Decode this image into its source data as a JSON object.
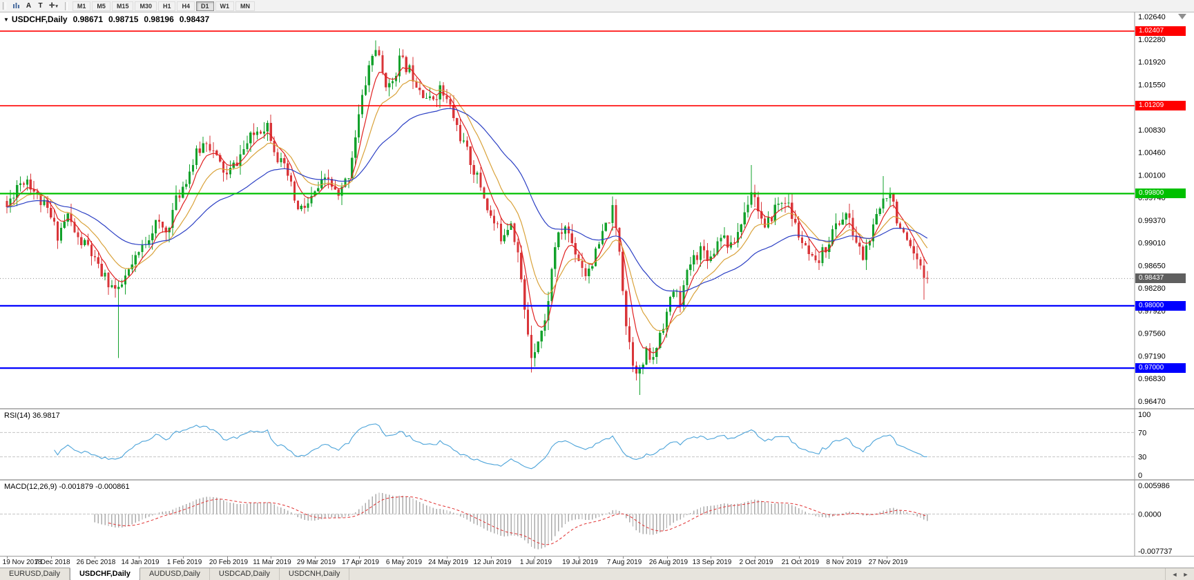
{
  "toolbar": {
    "tool_a": "A",
    "tool_t": "T",
    "crosshair_glyph": "✛",
    "caret_glyph": "▾",
    "timeframes": [
      "M1",
      "M5",
      "M15",
      "M30",
      "H1",
      "H4",
      "D1",
      "W1",
      "MN"
    ],
    "active_timeframe": "D1"
  },
  "chart_header": {
    "collapse_icon": "▼",
    "title": "USDCHF,Daily",
    "open": "0.98671",
    "high": "0.98715",
    "low": "0.98196",
    "close": "0.98437"
  },
  "price_scale": [
    "1.02640",
    "1.02280",
    "1.01920",
    "1.01550",
    "1.01190",
    "1.00830",
    "1.00460",
    "1.00100",
    "0.99740",
    "0.99370",
    "0.99010",
    "0.98650",
    "0.98280",
    "0.97920",
    "0.97560",
    "0.97190",
    "0.96830",
    "0.96470"
  ],
  "hlines": [
    {
      "label": "1.02407",
      "price": 1.02407,
      "color": "#ff0000",
      "width": 1.6
    },
    {
      "label": "1.01209",
      "price": 1.01209,
      "color": "#ff0000",
      "width": 1.6
    },
    {
      "label": "0.99800",
      "price": 0.998,
      "color": "#00c000",
      "width": 2.2
    },
    {
      "label": "0.98000",
      "price": 0.98,
      "color": "#0000ff",
      "width": 2.2
    },
    {
      "label": "0.97000",
      "price": 0.97,
      "color": "#0000ff",
      "width": 2.2
    }
  ],
  "bid": {
    "label": "0.98437",
    "price": 0.98437,
    "badge_color": "#5f5f5f"
  },
  "indicators": {
    "rsi": {
      "label": "RSI(14) 36.9817",
      "scale": [
        "100",
        "70",
        "30",
        "0"
      ],
      "levels": [
        70,
        30
      ],
      "line_color": "#4ba3d9"
    },
    "macd": {
      "label": "MACD(12,26,9) -0.001879 -0.000861",
      "scale": [
        "0.005986",
        "0.0000",
        "-0.007737"
      ],
      "histogram_color": "#ababab",
      "signal_color": "#e03030"
    }
  },
  "date_axis": [
    "19 Nov 2018",
    "7 Dec 2018",
    "26 Dec 2018",
    "14 Jan 2019",
    "1 Feb 2019",
    "20 Feb 2019",
    "11 Mar 2019",
    "29 Mar 2019",
    "17 Apr 2019",
    "6 May 2019",
    "24 May 2019",
    "12 Jun 2019",
    "1 Jul 2019",
    "19 Jul 2019",
    "7 Aug 2019",
    "26 Aug 2019",
    "13 Sep 2019",
    "2 Oct 2019",
    "21 Oct 2019",
    "8 Nov 2019",
    "27 Nov 2019"
  ],
  "tabs": [
    {
      "label": "EURUSD,Daily",
      "active": false
    },
    {
      "label": "USDCHF,Daily",
      "active": true
    },
    {
      "label": "AUDUSD,Daily",
      "active": false
    },
    {
      "label": "USDCAD,Daily",
      "active": false
    },
    {
      "label": "USDCNH,Daily",
      "active": false
    }
  ],
  "tab_scroll": {
    "left": "◄",
    "right": "►"
  },
  "chart_data": {
    "type": "candlestick",
    "symbol": "USDCHF",
    "timeframe": "Daily",
    "current_ohlc": {
      "open": 0.98671,
      "high": 0.98715,
      "low": 0.98196,
      "close": 0.98437
    },
    "y_axis_range": [
      0.9647,
      1.0264
    ],
    "candle_count": 273,
    "last_close": 0.98437,
    "seed": 11,
    "noise": 0.0011,
    "wick_noise": 0.0016,
    "up_color": "#12a12b",
    "down_color": "#d93539",
    "price_anchors": [
      [
        0,
        0.9958
      ],
      [
        3,
        0.9995
      ],
      [
        6,
        1.0005
      ],
      [
        9,
        0.9975
      ],
      [
        12,
        0.9952
      ],
      [
        15,
        0.9915
      ],
      [
        18,
        0.9945
      ],
      [
        21,
        0.9905
      ],
      [
        24,
        0.9895
      ],
      [
        27,
        0.9858
      ],
      [
        30,
        0.9838
      ],
      [
        33,
        0.982
      ],
      [
        35,
        0.9845
      ],
      [
        38,
        0.9872
      ],
      [
        41,
        0.9905
      ],
      [
        44,
        0.9932
      ],
      [
        47,
        0.9918
      ],
      [
        50,
        0.9968
      ],
      [
        53,
        1.0005
      ],
      [
        56,
        1.0042
      ],
      [
        59,
        1.0068
      ],
      [
        62,
        1.0035
      ],
      [
        65,
        1.0008
      ],
      [
        68,
        1.0032
      ],
      [
        71,
        1.006
      ],
      [
        74,
        1.0082
      ],
      [
        77,
        1.0092
      ],
      [
        80,
        1.0038
      ],
      [
        83,
        1.0008
      ],
      [
        86,
        0.9952
      ],
      [
        89,
        0.9962
      ],
      [
        92,
        0.9988
      ],
      [
        95,
        1.0002
      ],
      [
        98,
        0.9972
      ],
      [
        101,
        1.0012
      ],
      [
        104,
        1.0105
      ],
      [
        107,
        1.0185
      ],
      [
        109,
        1.0215
      ],
      [
        111,
        1.0172
      ],
      [
        113,
        1.0148
      ],
      [
        116,
        1.0195
      ],
      [
        119,
        1.0178
      ],
      [
        122,
        1.0152
      ],
      [
        125,
        1.0128
      ],
      [
        128,
        1.0148
      ],
      [
        131,
        1.0118
      ],
      [
        134,
        1.0072
      ],
      [
        137,
        1.0032
      ],
      [
        140,
        0.9992
      ],
      [
        143,
        0.9942
      ],
      [
        146,
        0.9912
      ],
      [
        149,
        0.9938
      ],
      [
        151,
        0.9885
      ],
      [
        153,
        0.979
      ],
      [
        155,
        0.9722
      ],
      [
        157,
        0.9748
      ],
      [
        159,
        0.9772
      ],
      [
        162,
        0.9898
      ],
      [
        165,
        0.9928
      ],
      [
        168,
        0.9888
      ],
      [
        171,
        0.9852
      ],
      [
        174,
        0.9882
      ],
      [
        177,
        0.9928
      ],
      [
        179,
        0.9952
      ],
      [
        181,
        0.9892
      ],
      [
        183,
        0.9772
      ],
      [
        185,
        0.9712
      ],
      [
        187,
        0.9692
      ],
      [
        189,
        0.9722
      ],
      [
        191,
        0.9712
      ],
      [
        193,
        0.9758
      ],
      [
        195,
        0.9788
      ],
      [
        197,
        0.9825
      ],
      [
        199,
        0.9808
      ],
      [
        202,
        0.9868
      ],
      [
        205,
        0.9892
      ],
      [
        208,
        0.9878
      ],
      [
        211,
        0.9918
      ],
      [
        214,
        0.9892
      ],
      [
        217,
        0.9932
      ],
      [
        220,
        0.9988
      ],
      [
        222,
        0.9958
      ],
      [
        224,
        0.9918
      ],
      [
        227,
        0.9958
      ],
      [
        230,
        0.9972
      ],
      [
        233,
        0.9928
      ],
      [
        236,
        0.9888
      ],
      [
        239,
        0.9862
      ],
      [
        242,
        0.9895
      ],
      [
        245,
        0.9928
      ],
      [
        248,
        0.9948
      ],
      [
        251,
        0.9902
      ],
      [
        253,
        0.9878
      ],
      [
        256,
        0.9922
      ],
      [
        259,
        0.9972
      ],
      [
        261,
        0.9988
      ],
      [
        263,
        0.9942
      ],
      [
        265,
        0.9908
      ],
      [
        267,
        0.9885
      ],
      [
        269,
        0.9868
      ],
      [
        271,
        0.9848
      ],
      [
        272,
        0.9844
      ]
    ],
    "wick_events": [
      {
        "i": 33,
        "low": 0.9716
      },
      {
        "i": 109,
        "high": 1.0226
      },
      {
        "i": 155,
        "low": 0.9693
      },
      {
        "i": 187,
        "low": 0.9657
      },
      {
        "i": 220,
        "high": 1.0026
      },
      {
        "i": 259,
        "high": 1.0008
      },
      {
        "i": 271,
        "low": 0.981
      }
    ],
    "moving_averages": [
      {
        "period": 6,
        "color": "#e02020"
      },
      {
        "period": 14,
        "color": "#d9a23a"
      },
      {
        "period": 40,
        "color": "#2b3fc4"
      }
    ],
    "indicator_params": {
      "rsi_period": 14,
      "macd_fast": 12,
      "macd_slow": 26,
      "macd_signal": 9
    },
    "horizontal_levels": [
      1.02407,
      1.01209,
      0.998,
      0.98,
      0.97
    ],
    "rsi_last": 36.9817,
    "macd_last": [
      -0.001879,
      -0.000861
    ]
  }
}
